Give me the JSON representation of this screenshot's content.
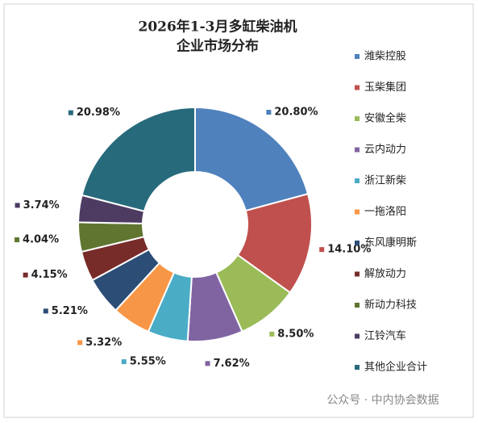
{
  "chart_data": {
    "type": "donut",
    "title": [
      "2026年1-3月多缸柴油机",
      "企业市场分布"
    ],
    "categories": [
      "潍柴控股",
      "玉柴集团",
      "安徽全柴",
      "云内动力",
      "浙江新柴",
      "一拖洛阳",
      "东风康明斯",
      "解放动力",
      "新动力科技",
      "江铃汽车",
      "其他企业合计"
    ],
    "values": [
      20.8,
      14.1,
      8.5,
      7.62,
      5.55,
      5.32,
      5.21,
      4.15,
      4.04,
      3.74,
      20.98
    ],
    "value_labels": [
      "20.80%",
      "14.10%",
      "8.50%",
      "7.62%",
      "5.55%",
      "5.32%",
      "5.21%",
      "4.15%",
      "4.04%",
      "3.74%",
      "20.98%"
    ],
    "colors": [
      "#4f81bd",
      "#c0504d",
      "#9bbb59",
      "#8064a2",
      "#4bacc6",
      "#f79646",
      "#2c4d75",
      "#772c2a",
      "#5f7530",
      "#4d3b62",
      "#276a7c"
    ],
    "legend": "right"
  },
  "watermark": "公众号 · 中内协会数据"
}
